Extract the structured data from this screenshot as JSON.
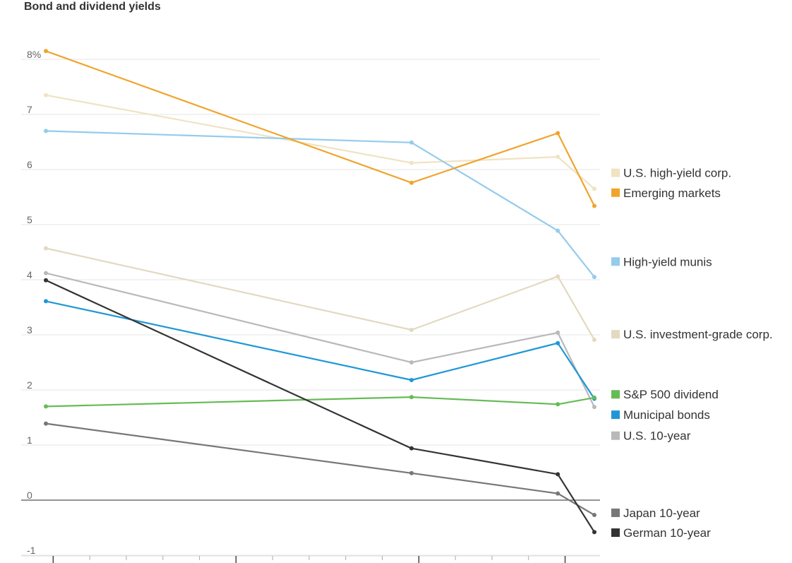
{
  "chart_data": {
    "type": "line",
    "title": "Bond and dividend yields",
    "xlabel": "",
    "ylabel": "",
    "ylim": [
      -1,
      8.3
    ],
    "y_ticks": [
      {
        "value": 8,
        "label": "8%"
      },
      {
        "value": 7,
        "label": "7"
      },
      {
        "value": 6,
        "label": "6"
      },
      {
        "value": 5,
        "label": "5"
      },
      {
        "value": 4,
        "label": "4"
      },
      {
        "value": 3,
        "label": "3"
      },
      {
        "value": 2,
        "label": "2"
      },
      {
        "value": 1,
        "label": "1"
      },
      {
        "value": 0,
        "label": "0"
      },
      {
        "value": -1,
        "label": "-1"
      }
    ],
    "x": [
      0,
      10,
      14,
      15
    ],
    "xlim": [
      0,
      15
    ],
    "x_ticks_major": [
      0.2,
      5.2,
      10.2,
      14.2
    ],
    "x_ticks_minor": [
      1.2,
      2.2,
      3.2,
      4.2,
      6.2,
      7.2,
      8.2,
      9.2,
      11.2,
      12.2,
      13.2
    ],
    "series": [
      {
        "name": "U.S. high-yield corp.",
        "color": "#efe3c2",
        "values": [
          7.35,
          6.12,
          6.23,
          5.65
        ]
      },
      {
        "name": "U.S. investment-grade corp.",
        "color": "#e2d9bf",
        "values": [
          4.57,
          3.09,
          4.06,
          2.91
        ]
      },
      {
        "name": "U.S. 10-year",
        "color": "#b9b9b9",
        "values": [
          4.12,
          2.5,
          3.04,
          1.69
        ]
      },
      {
        "name": "High-yield munis",
        "color": "#95cbec",
        "values": [
          6.7,
          6.49,
          4.89,
          4.05
        ]
      },
      {
        "name": "Municipal bonds",
        "color": "#1f97d6",
        "values": [
          3.61,
          2.18,
          2.85,
          1.84
        ]
      },
      {
        "name": "S&P 500 dividend",
        "color": "#66bb55",
        "values": [
          1.7,
          1.87,
          1.74,
          1.86
        ]
      },
      {
        "name": "Japan 10-year",
        "color": "#777777",
        "values": [
          1.39,
          0.49,
          0.12,
          -0.27
        ]
      },
      {
        "name": "German 10-year",
        "color": "#333333",
        "values": [
          3.99,
          0.94,
          0.47,
          -0.58
        ]
      },
      {
        "name": "Emerging markets",
        "color": "#f0a42d",
        "values": [
          8.15,
          5.76,
          6.66,
          5.34
        ]
      }
    ],
    "legend": [
      {
        "name": "U.S. high-yield corp.",
        "color": "#efe3c2",
        "anchor": 5.94
      },
      {
        "name": "Emerging markets",
        "color": "#f0a42d",
        "anchor": 5.58
      },
      {
        "name": "High-yield munis",
        "color": "#95cbec",
        "anchor": 4.33
      },
      {
        "name": "U.S. investment-grade corp.",
        "color": "#e2d9bf",
        "anchor": 3.01
      },
      {
        "name": "S&P 500 dividend",
        "color": "#66bb55",
        "anchor": 1.92
      },
      {
        "name": "Municipal bonds",
        "color": "#1f97d6",
        "anchor": 1.55
      },
      {
        "name": "U.S. 10-year",
        "color": "#b9b9b9",
        "anchor": 1.17
      },
      {
        "name": "Japan 10-year",
        "color": "#777777",
        "anchor": -0.23
      },
      {
        "name": "German 10-year",
        "color": "#333333",
        "anchor": -0.59
      }
    ],
    "legend_position": "right",
    "grid": true
  }
}
